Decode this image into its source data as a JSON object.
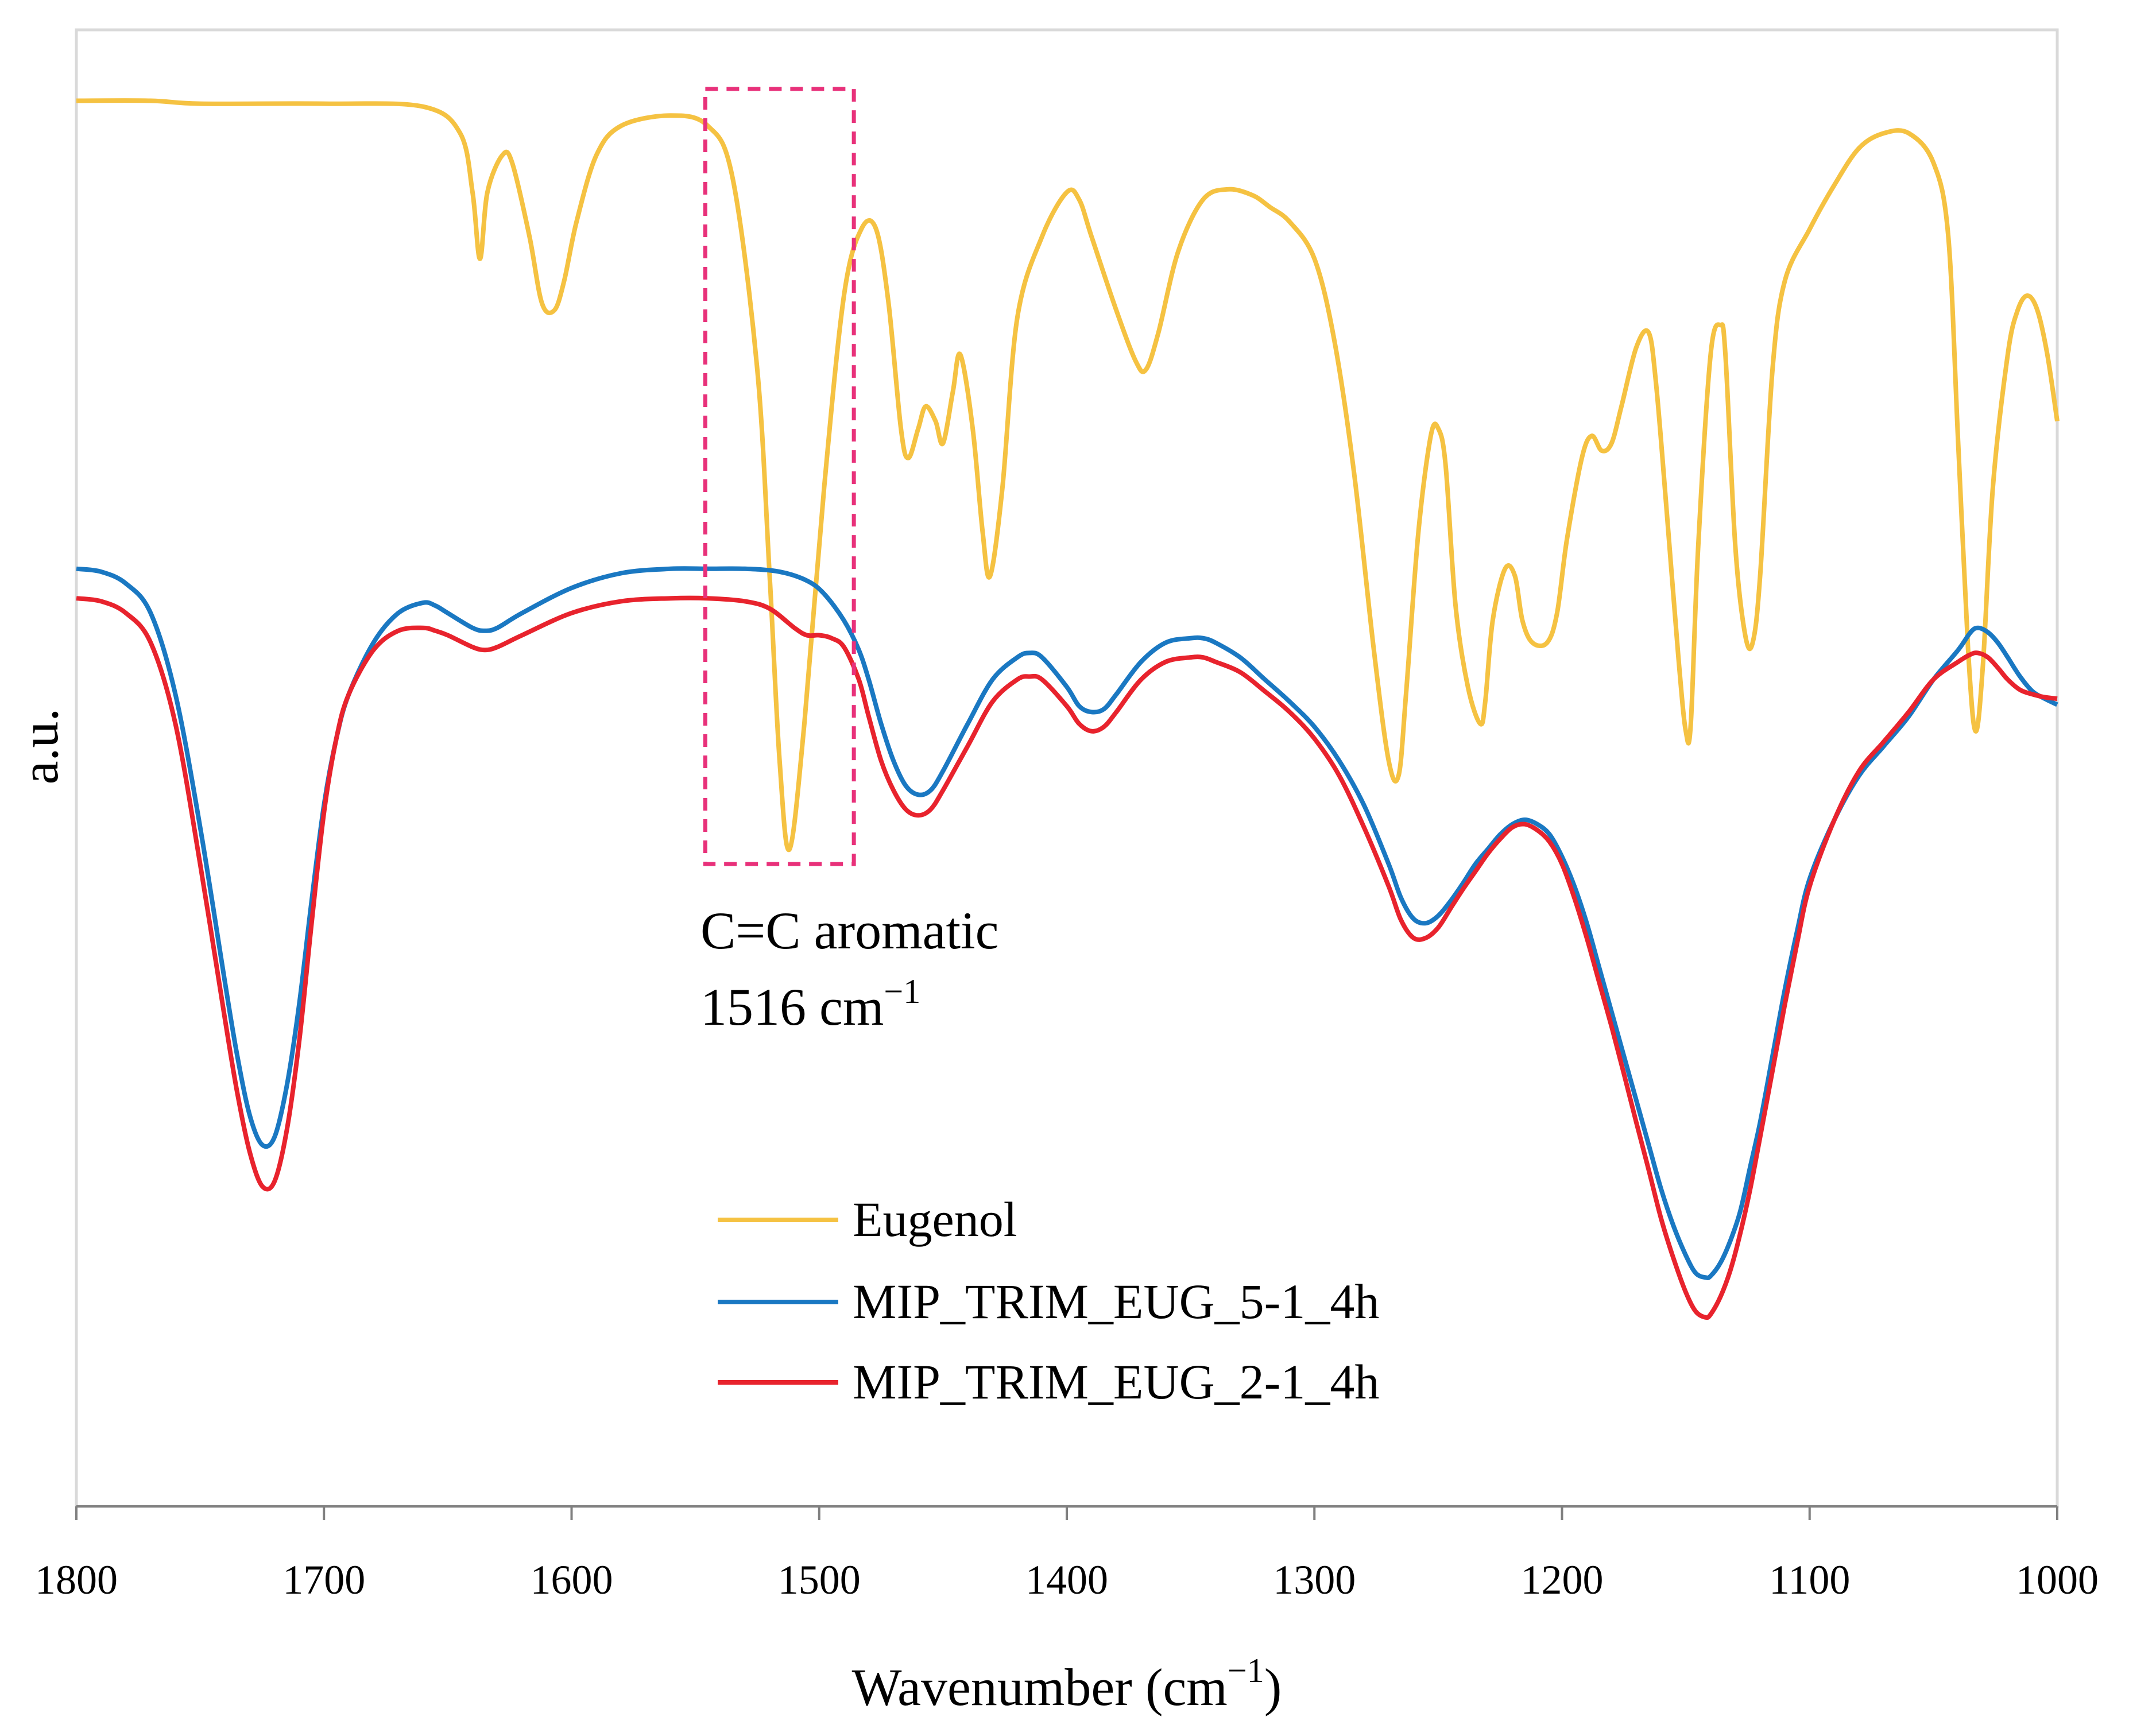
{
  "chart_data": {
    "type": "line",
    "title": "",
    "xlabel": "Wavenumber (cm⁻¹)",
    "xlabel_main": "Wavenumber (cm",
    "xlabel_sup": "−1",
    "xlabel_close": ")",
    "ylabel": "a.u.",
    "xlim": [
      1800,
      1000
    ],
    "ylim": [
      0,
      10
    ],
    "x_ticks": [
      "1800",
      "1700",
      "1600",
      "1500",
      "1400",
      "1300",
      "1200",
      "1100",
      "1000"
    ],
    "x_tick_values": [
      1800,
      1700,
      1600,
      1500,
      1400,
      1300,
      1200,
      1100,
      1000
    ],
    "legend_position": "bottom-center",
    "annotation": {
      "line1": "C=C aromatic",
      "line2_main": "1516 cm",
      "line2_sup": "−1",
      "x_range": [
        1546,
        1486
      ],
      "y_range": [
        4.35,
        9.6
      ],
      "box_color": "#e8317a"
    },
    "series": [
      {
        "name": "Eugenol",
        "color": "#f5c242",
        "x": [
          1800,
          1770,
          1750,
          1700,
          1660,
          1645,
          1640,
          1637,
          1634,
          1628,
          1624,
          1617,
          1612,
          1607,
          1603,
          1598,
          1590,
          1580,
          1560,
          1545,
          1535,
          1525,
          1520,
          1516,
          1512,
          1506,
          1498,
          1490,
          1483,
          1477,
          1472,
          1467,
          1464,
          1460,
          1457,
          1453,
          1450,
          1446,
          1443,
          1438,
          1434,
          1431,
          1426,
          1420,
          1410,
          1400,
          1395,
          1390,
          1380,
          1372,
          1368,
          1363,
          1355,
          1345,
          1335,
          1325,
          1318,
          1310,
          1300,
          1292,
          1284,
          1276,
          1270,
          1266,
          1263,
          1258,
          1253,
          1250,
          1247,
          1243,
          1238,
          1233,
          1231,
          1228,
          1223,
          1219,
          1216,
          1212,
          1206,
          1202,
          1198,
          1192,
          1188,
          1184,
          1180,
          1176,
          1170,
          1165,
          1162,
          1158,
          1153,
          1150,
          1148,
          1145,
          1140,
          1136,
          1134,
          1130,
          1126,
          1123,
          1120,
          1115,
          1110,
          1100,
          1090,
          1080,
          1070,
          1060,
          1050,
          1044,
          1040,
          1036,
          1033,
          1030,
          1026,
          1020,
          1016,
          1012,
          1008,
          1004,
          1000
        ],
        "y": [
          9.52,
          9.52,
          9.5,
          9.5,
          9.48,
          9.3,
          8.9,
          8.45,
          8.9,
          9.15,
          9.1,
          8.6,
          8.15,
          8.1,
          8.3,
          8.7,
          9.15,
          9.35,
          9.42,
          9.35,
          9.0,
          7.7,
          6.3,
          5.05,
          4.45,
          5.3,
          6.9,
          8.2,
          8.65,
          8.65,
          8.15,
          7.3,
          7.1,
          7.3,
          7.45,
          7.35,
          7.2,
          7.55,
          7.8,
          7.3,
          6.6,
          6.3,
          6.9,
          8.05,
          8.6,
          8.9,
          8.85,
          8.6,
          8.1,
          7.75,
          7.7,
          7.95,
          8.5,
          8.85,
          8.92,
          8.88,
          8.8,
          8.7,
          8.45,
          7.9,
          7.0,
          5.8,
          5.05,
          4.95,
          5.5,
          6.6,
          7.25,
          7.3,
          7.05,
          6.1,
          5.55,
          5.3,
          5.45,
          6.0,
          6.35,
          6.3,
          6.0,
          5.85,
          5.85,
          6.05,
          6.55,
          7.1,
          7.25,
          7.15,
          7.2,
          7.45,
          7.85,
          7.95,
          7.6,
          6.8,
          5.75,
          5.25,
          5.3,
          6.5,
          7.8,
          8.0,
          7.8,
          6.5,
          5.9,
          5.85,
          6.3,
          7.7,
          8.3,
          8.65,
          8.95,
          9.2,
          9.3,
          9.3,
          9.1,
          8.6,
          7.2,
          5.8,
          5.25,
          5.7,
          6.9,
          7.8,
          8.1,
          8.2,
          8.1,
          7.8,
          7.35
        ]
      },
      {
        "name": "MIP_TRIM_EUG_5-1_4h",
        "color": "#1a78c2",
        "x": [
          1800,
          1790,
          1780,
          1770,
          1760,
          1750,
          1740,
          1735,
          1730,
          1725,
          1720,
          1715,
          1710,
          1705,
          1700,
          1695,
          1690,
          1680,
          1670,
          1660,
          1655,
          1650,
          1640,
          1635,
          1630,
          1620,
          1600,
          1580,
          1560,
          1545,
          1530,
          1516,
          1505,
          1498,
          1490,
          1484,
          1480,
          1475,
          1470,
          1465,
          1460,
          1455,
          1450,
          1440,
          1430,
          1420,
          1415,
          1410,
          1400,
          1395,
          1390,
          1385,
          1380,
          1370,
          1360,
          1350,
          1345,
          1340,
          1330,
          1320,
          1310,
          1300,
          1290,
          1280,
          1270,
          1265,
          1260,
          1255,
          1250,
          1245,
          1240,
          1235,
          1230,
          1225,
          1220,
          1215,
          1210,
          1205,
          1200,
          1195,
          1190,
          1185,
          1180,
          1175,
          1170,
          1165,
          1160,
          1155,
          1150,
          1146,
          1142,
          1140,
          1136,
          1132,
          1128,
          1124,
          1120,
          1115,
          1110,
          1105,
          1100,
          1090,
          1080,
          1070,
          1060,
          1050,
          1040,
          1035,
          1032,
          1028,
          1024,
          1020,
          1015,
          1010,
          1005,
          1000
        ],
        "y": [
          6.35,
          6.33,
          6.25,
          6.05,
          5.5,
          4.6,
          3.55,
          3.05,
          2.65,
          2.45,
          2.5,
          2.85,
          3.4,
          4.1,
          4.75,
          5.2,
          5.5,
          5.85,
          6.05,
          6.12,
          6.1,
          6.05,
          5.95,
          5.93,
          5.95,
          6.05,
          6.22,
          6.32,
          6.35,
          6.35,
          6.35,
          6.33,
          6.27,
          6.18,
          6.0,
          5.8,
          5.6,
          5.3,
          5.05,
          4.88,
          4.82,
          4.85,
          4.98,
          5.3,
          5.6,
          5.75,
          5.78,
          5.75,
          5.55,
          5.42,
          5.38,
          5.4,
          5.5,
          5.72,
          5.85,
          5.88,
          5.88,
          5.85,
          5.75,
          5.6,
          5.45,
          5.28,
          5.05,
          4.75,
          4.35,
          4.12,
          3.98,
          3.95,
          4.0,
          4.1,
          4.22,
          4.35,
          4.45,
          4.55,
          4.62,
          4.65,
          4.62,
          4.55,
          4.4,
          4.2,
          3.95,
          3.65,
          3.35,
          3.05,
          2.75,
          2.45,
          2.15,
          1.9,
          1.7,
          1.58,
          1.55,
          1.56,
          1.65,
          1.8,
          2.0,
          2.3,
          2.6,
          3.05,
          3.5,
          3.9,
          4.25,
          4.65,
          4.95,
          5.15,
          5.35,
          5.6,
          5.8,
          5.92,
          5.95,
          5.92,
          5.85,
          5.75,
          5.62,
          5.52,
          5.47,
          5.43
        ]
      },
      {
        "name": "MIP_TRIM_EUG_2-1_4h",
        "color": "#e8232d",
        "x": [
          1800,
          1790,
          1780,
          1770,
          1760,
          1750,
          1740,
          1735,
          1730,
          1725,
          1720,
          1715,
          1710,
          1705,
          1700,
          1695,
          1690,
          1680,
          1670,
          1660,
          1655,
          1650,
          1640,
          1635,
          1630,
          1620,
          1600,
          1580,
          1560,
          1545,
          1530,
          1520,
          1510,
          1505,
          1500,
          1495,
          1490,
          1484,
          1480,
          1475,
          1470,
          1465,
          1460,
          1455,
          1450,
          1440,
          1430,
          1420,
          1415,
          1410,
          1400,
          1395,
          1390,
          1385,
          1380,
          1370,
          1360,
          1350,
          1345,
          1340,
          1330,
          1320,
          1310,
          1300,
          1290,
          1280,
          1270,
          1265,
          1260,
          1255,
          1250,
          1245,
          1240,
          1235,
          1230,
          1225,
          1220,
          1215,
          1210,
          1205,
          1200,
          1195,
          1190,
          1185,
          1180,
          1175,
          1170,
          1165,
          1160,
          1155,
          1150,
          1146,
          1142,
          1140,
          1136,
          1132,
          1128,
          1124,
          1120,
          1115,
          1110,
          1105,
          1100,
          1090,
          1080,
          1070,
          1060,
          1050,
          1040,
          1035,
          1032,
          1028,
          1024,
          1020,
          1015,
          1010,
          1005,
          1000
        ],
        "y": [
          6.15,
          6.13,
          6.05,
          5.85,
          5.3,
          4.35,
          3.3,
          2.8,
          2.4,
          2.17,
          2.2,
          2.55,
          3.15,
          3.95,
          4.7,
          5.2,
          5.5,
          5.8,
          5.93,
          5.95,
          5.93,
          5.9,
          5.82,
          5.8,
          5.82,
          5.9,
          6.05,
          6.13,
          6.15,
          6.15,
          6.13,
          6.08,
          5.95,
          5.9,
          5.9,
          5.88,
          5.82,
          5.6,
          5.35,
          5.05,
          4.85,
          4.72,
          4.68,
          4.72,
          4.85,
          5.15,
          5.45,
          5.6,
          5.62,
          5.6,
          5.42,
          5.3,
          5.25,
          5.28,
          5.38,
          5.6,
          5.72,
          5.75,
          5.75,
          5.72,
          5.65,
          5.52,
          5.38,
          5.2,
          4.95,
          4.6,
          4.2,
          3.97,
          3.85,
          3.85,
          3.92,
          4.05,
          4.18,
          4.3,
          4.42,
          4.52,
          4.6,
          4.62,
          4.58,
          4.5,
          4.35,
          4.12,
          3.85,
          3.55,
          3.25,
          2.93,
          2.6,
          2.28,
          1.95,
          1.68,
          1.45,
          1.32,
          1.28,
          1.3,
          1.42,
          1.6,
          1.85,
          2.15,
          2.5,
          2.95,
          3.4,
          3.82,
          4.2,
          4.65,
          4.98,
          5.18,
          5.38,
          5.6,
          5.72,
          5.77,
          5.78,
          5.75,
          5.68,
          5.6,
          5.53,
          5.5,
          5.48,
          5.47
        ]
      }
    ]
  }
}
